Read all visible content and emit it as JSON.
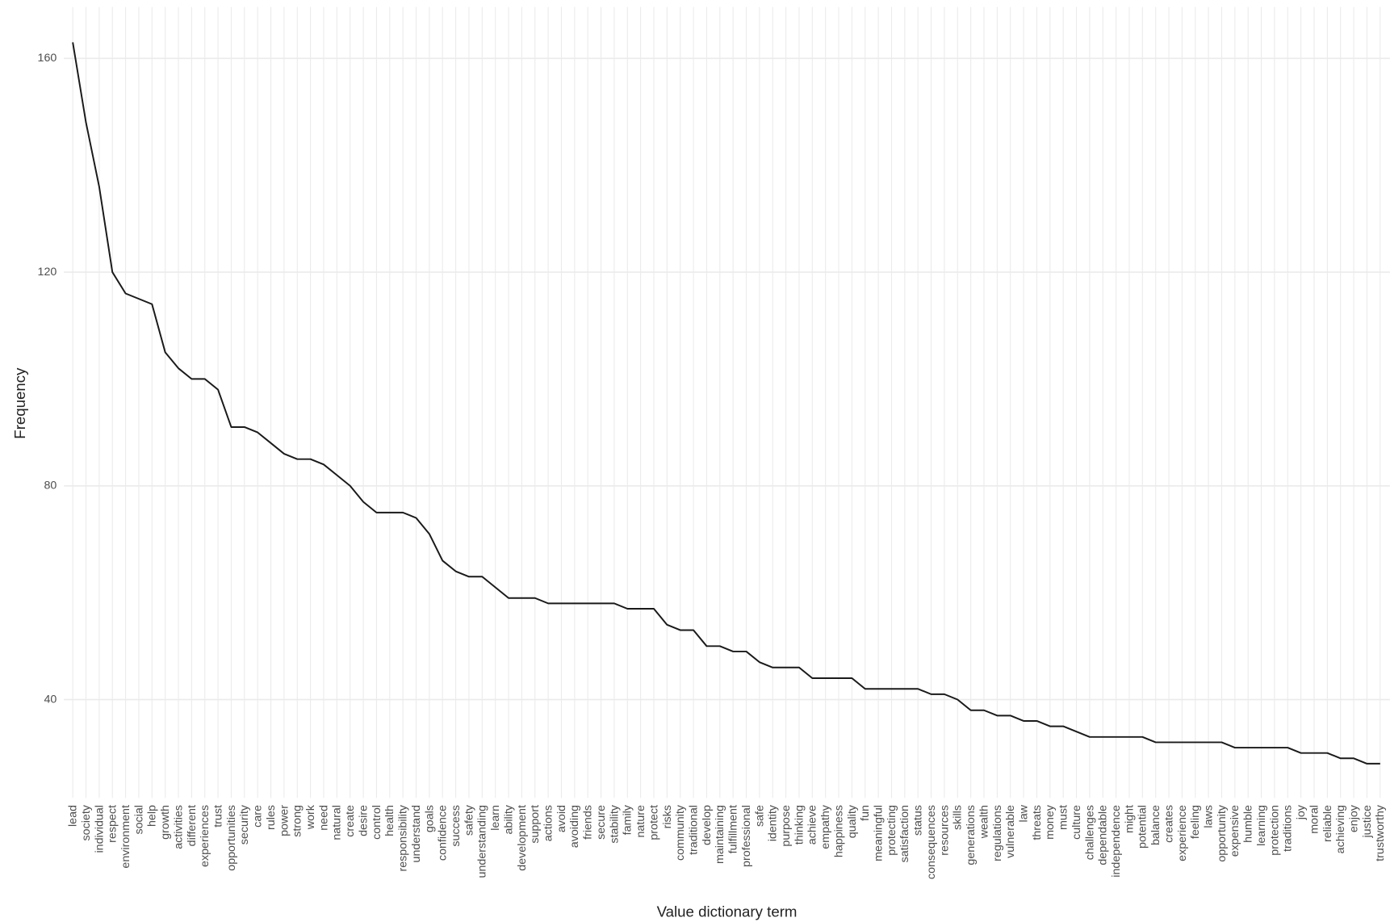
{
  "chart_data": {
    "type": "line",
    "x_label": "Value dictionary term",
    "y_label": "Frequency",
    "categories": [
      "lead",
      "society",
      "individual",
      "respect",
      "environment",
      "social",
      "help",
      "growth",
      "activities",
      "different",
      "experiences",
      "trust",
      "opportunities",
      "security",
      "care",
      "rules",
      "power",
      "strong",
      "work",
      "need",
      "natural",
      "create",
      "desire",
      "control",
      "health",
      "responsibility",
      "understand",
      "goals",
      "confidence",
      "success",
      "safety",
      "understanding",
      "learn",
      "ability",
      "development",
      "support",
      "actions",
      "avoid",
      "avoiding",
      "friends",
      "secure",
      "stability",
      "family",
      "nature",
      "protect",
      "risks",
      "community",
      "traditional",
      "develop",
      "maintaining",
      "fulfillment",
      "professional",
      "safe",
      "identity",
      "purpose",
      "thinking",
      "achieve",
      "empathy",
      "happiness",
      "quality",
      "fun",
      "meaningful",
      "protecting",
      "satisfaction",
      "status",
      "consequences",
      "resources",
      "skills",
      "generations",
      "wealth",
      "regulations",
      "vulnerable",
      "law",
      "threats",
      "money",
      "must",
      "culture",
      "challenges",
      "dependable",
      "independence",
      "might",
      "potential",
      "balance",
      "creates",
      "experience",
      "feeling",
      "laws",
      "opportunity",
      "expensive",
      "humble",
      "learning",
      "protection",
      "traditions",
      "joy",
      "moral",
      "reliable",
      "achieving",
      "enjoy",
      "justice",
      "trustworthy"
    ],
    "values": [
      163,
      148,
      136,
      120,
      116,
      115,
      114,
      105,
      102,
      100,
      100,
      98,
      91,
      91,
      90,
      88,
      86,
      85,
      85,
      84,
      82,
      80,
      77,
      75,
      75,
      75,
      74,
      71,
      66,
      64,
      63,
      63,
      61,
      59,
      59,
      59,
      58,
      58,
      58,
      58,
      58,
      58,
      57,
      57,
      57,
      54,
      53,
      53,
      50,
      50,
      49,
      49,
      47,
      46,
      46,
      46,
      44,
      44,
      44,
      44,
      42,
      42,
      42,
      42,
      42,
      41,
      41,
      40,
      38,
      38,
      37,
      37,
      36,
      36,
      35,
      35,
      34,
      33,
      33,
      33,
      33,
      33,
      32,
      32,
      32,
      32,
      32,
      32,
      31,
      31,
      31,
      31,
      31,
      30,
      30,
      30,
      29,
      29,
      28,
      28
    ],
    "color": "#1a1a1a",
    "ylim": [
      21.6,
      169.6
    ],
    "yticks": [
      40,
      80,
      120,
      160
    ],
    "grid": true
  }
}
